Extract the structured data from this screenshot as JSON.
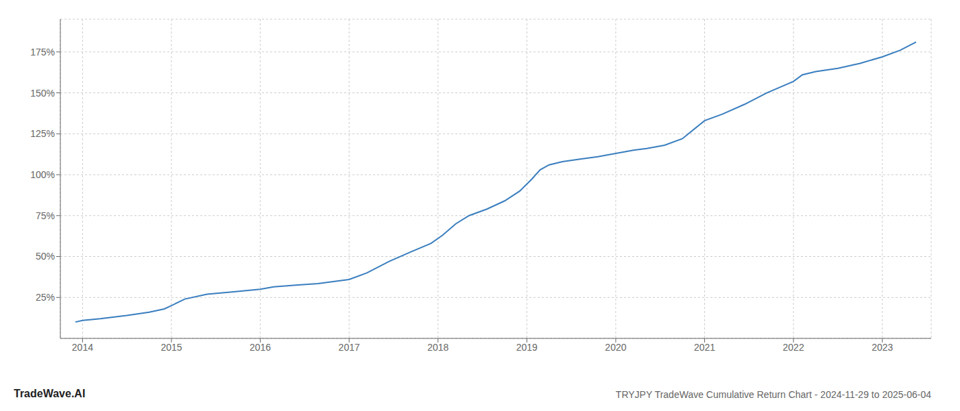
{
  "chart_data": {
    "type": "line",
    "title": "TRYJPY TradeWave Cumulative Return Chart - 2024-11-29 to 2025-06-04",
    "annotations": [
      "TradeWave.AI"
    ],
    "color": "#3a7ebf",
    "grid": true,
    "x": [
      2013.92,
      2014.0,
      2014.2,
      2014.5,
      2014.75,
      2014.92,
      2015.0,
      2015.15,
      2015.4,
      2015.7,
      2016.0,
      2016.15,
      2016.4,
      2016.65,
      2017.0,
      2017.2,
      2017.45,
      2017.7,
      2017.92,
      2018.05,
      2018.2,
      2018.35,
      2018.55,
      2018.75,
      2018.92,
      2019.05,
      2019.15,
      2019.25,
      2019.4,
      2019.6,
      2019.8,
      2020.0,
      2020.2,
      2020.35,
      2020.55,
      2020.75,
      2021.0,
      2021.2,
      2021.45,
      2021.7,
      2022.0,
      2022.1,
      2022.25,
      2022.5,
      2022.75,
      2023.0,
      2023.2,
      2023.38
    ],
    "values": [
      10,
      11,
      12,
      14,
      16,
      18,
      20,
      24,
      27,
      28.5,
      30,
      31.5,
      32.5,
      33.5,
      36,
      40,
      47,
      53,
      58,
      63,
      70,
      75,
      79,
      84,
      90,
      97,
      103,
      106,
      108,
      109.5,
      111,
      113,
      115,
      116,
      118,
      122,
      133,
      137,
      143,
      150,
      157,
      161,
      163,
      165,
      168,
      172,
      176,
      181
    ],
    "xlim": [
      2013.75,
      2023.55
    ],
    "xticks": [
      2014,
      2015,
      2016,
      2017,
      2018,
      2019,
      2020,
      2021,
      2022,
      2023
    ],
    "ylim": [
      0,
      195
    ],
    "yticks": [
      {
        "value": 25,
        "label": "25%"
      },
      {
        "value": 50,
        "label": "50%"
      },
      {
        "value": 75,
        "label": "75%"
      },
      {
        "value": 100,
        "label": "100%"
      },
      {
        "value": 125,
        "label": "125%"
      },
      {
        "value": 150,
        "label": "150%"
      },
      {
        "value": 175,
        "label": "175%"
      }
    ]
  }
}
